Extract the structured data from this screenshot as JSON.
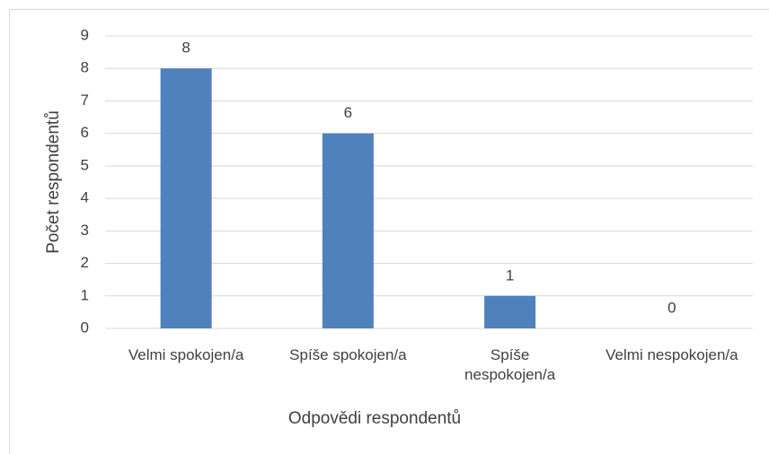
{
  "chart_data": {
    "type": "bar",
    "x_label": "Odpovědi respondentů",
    "y_label": "Počet respondentů",
    "categories": [
      "Velmi spokojen/a",
      "Spíše spokojen/a",
      "Spíše nespokojen/a",
      "Velmi nespokojen/a"
    ],
    "values": [
      8,
      6,
      1,
      0
    ],
    "color": "#4f81bd",
    "ylim": [
      0,
      9
    ],
    "yticks": [
      0,
      1,
      2,
      3,
      4,
      5,
      6,
      7,
      8,
      9
    ],
    "grid": true
  }
}
